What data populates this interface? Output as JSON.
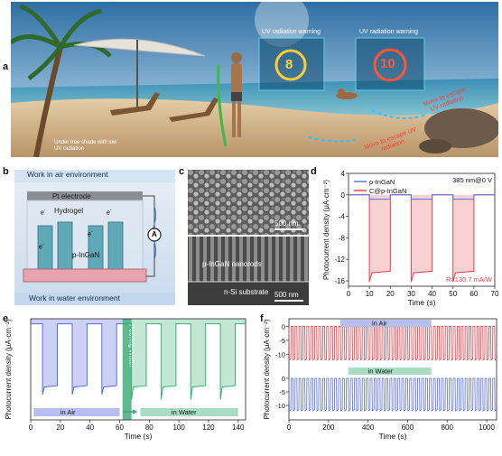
{
  "panels": {
    "a": "a",
    "b": "b",
    "c": "c",
    "d": "d",
    "e": "e",
    "f": "f"
  },
  "scene": {
    "warning1_title": "UV radiation warning",
    "warning1_value": "8",
    "warning2_title": "UV radiation warning",
    "warning2_value": "10",
    "caption_left": "Under tree shade with low UV radiation",
    "move_text1": "Move to escape UV radiation",
    "move_text2": "Move to escape UV radiation"
  },
  "device": {
    "air_label": "Work in air environment",
    "water_label": "Work in water environment",
    "pt_label": "Pt electrode",
    "hydrogel_label": "Hydrogel",
    "ingan_label": "p-InGaN",
    "ammeter_symbol": "A",
    "electron": "e",
    "electron_sup": "-"
  },
  "sem": {
    "scale_top": "500 nm",
    "nanorods_label": "p-InGaN nanorods",
    "substrate_label": "n-Si substrate",
    "scale_bottom": "500 nm"
  },
  "colors": {
    "blue": "#5b6ee1",
    "red": "#e8424a",
    "green": "#3fae7a",
    "blue_fill": "#b7bef0",
    "red_fill": "#f4b2b5",
    "green_fill": "#a9dcc3"
  },
  "chart_data": [
    {
      "panel": "d",
      "type": "line",
      "xlabel": "Time (s)",
      "ylabel": "Photocurrent density (μA·cm⁻²)",
      "xlim": [
        0,
        70
      ],
      "ylim": [
        -17,
        4
      ],
      "xticks": [
        0,
        10,
        20,
        30,
        40,
        50,
        60,
        70
      ],
      "yticks": [
        4,
        0,
        -4,
        -8,
        -12,
        -16
      ],
      "condition": "385 nm@0 V",
      "annotation": "R=130.7 mA/W",
      "series": [
        {
          "name": "p-InGaN",
          "color": "#5b6ee1",
          "on_value": -0.8,
          "off_value": 0
        },
        {
          "name": "C@p-InGaN",
          "color": "#e8424a",
          "on_value": -14.5,
          "spike": -16.2,
          "off_value": 0
        }
      ],
      "light_on_intervals": [
        [
          10,
          20
        ],
        [
          30,
          40
        ],
        [
          50,
          60
        ]
      ]
    },
    {
      "panel": "e",
      "type": "line",
      "xlabel": "Time (s)",
      "ylabel": "Photocurrent density (μA·cm⁻²)",
      "xlim": [
        0,
        145
      ],
      "ylim": [
        -20,
        0
      ],
      "xticks": [
        0,
        20,
        40,
        60,
        80,
        100,
        120,
        140
      ],
      "annotation_pour": "Pouring Water",
      "label_air": "in Air",
      "label_water": "in Water",
      "series": [
        {
          "name": "in Air",
          "color": "#5b6ee1",
          "on_value": -13.5,
          "spike": -15.0,
          "off_value": -1.0,
          "on_intervals": [
            [
              8,
              18
            ],
            [
              28,
              38
            ],
            [
              48,
              58
            ]
          ]
        },
        {
          "name": "in Water",
          "color": "#3fae7a",
          "on_value": -13.5,
          "spike": -16.0,
          "off_value": -1.0,
          "on_intervals": [
            [
              68,
              78
            ],
            [
              88,
              98
            ],
            [
              108,
              118
            ],
            [
              128,
              138
            ]
          ]
        }
      ]
    },
    {
      "panel": "f",
      "type": "line",
      "xlabel": "Time (s)",
      "ylabel": "Photocurrent density (μA·cm⁻²)",
      "xlim": [
        0,
        1050
      ],
      "xticks": [
        0,
        200,
        400,
        600,
        800,
        1000
      ],
      "upper_yticks": [
        0,
        -5,
        -10
      ],
      "lower_yticks": [
        0,
        -5,
        -10
      ],
      "label_air": "in Air",
      "label_water": "in Water",
      "series": [
        {
          "name": "in Air",
          "color": "#e8424a",
          "high": 0,
          "low": -12,
          "period": 20
        },
        {
          "name": "in Water",
          "color": "#5b6ee1",
          "high": 0,
          "low": -12,
          "period": 20
        }
      ]
    }
  ]
}
